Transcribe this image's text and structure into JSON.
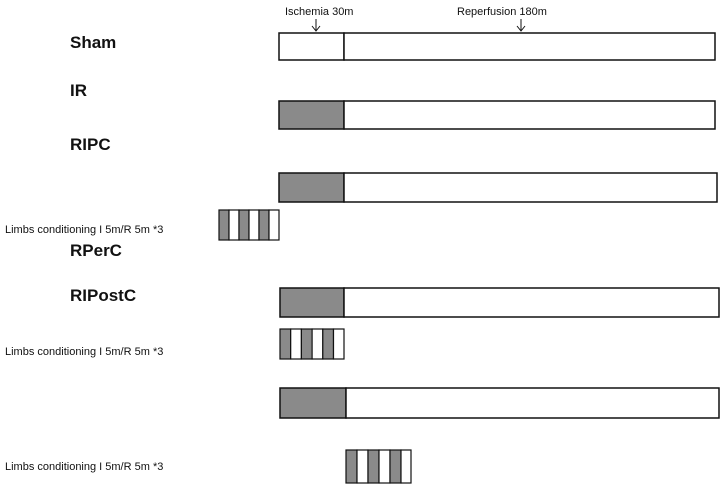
{
  "phases": {
    "ischemia": "Ischemia 30m",
    "reperfusion": "Reperfusion 180m"
  },
  "groups": [
    "Sham",
    "IR",
    "RIPC",
    "RPerC",
    "RIPostC"
  ],
  "conditioning_label": "Limbs conditioning I 5m/R 5m *3",
  "colors": {
    "ischemia_fill": "#8a8a8a",
    "cycle_fill": "#8a8a8a",
    "outline": "#111111"
  }
}
